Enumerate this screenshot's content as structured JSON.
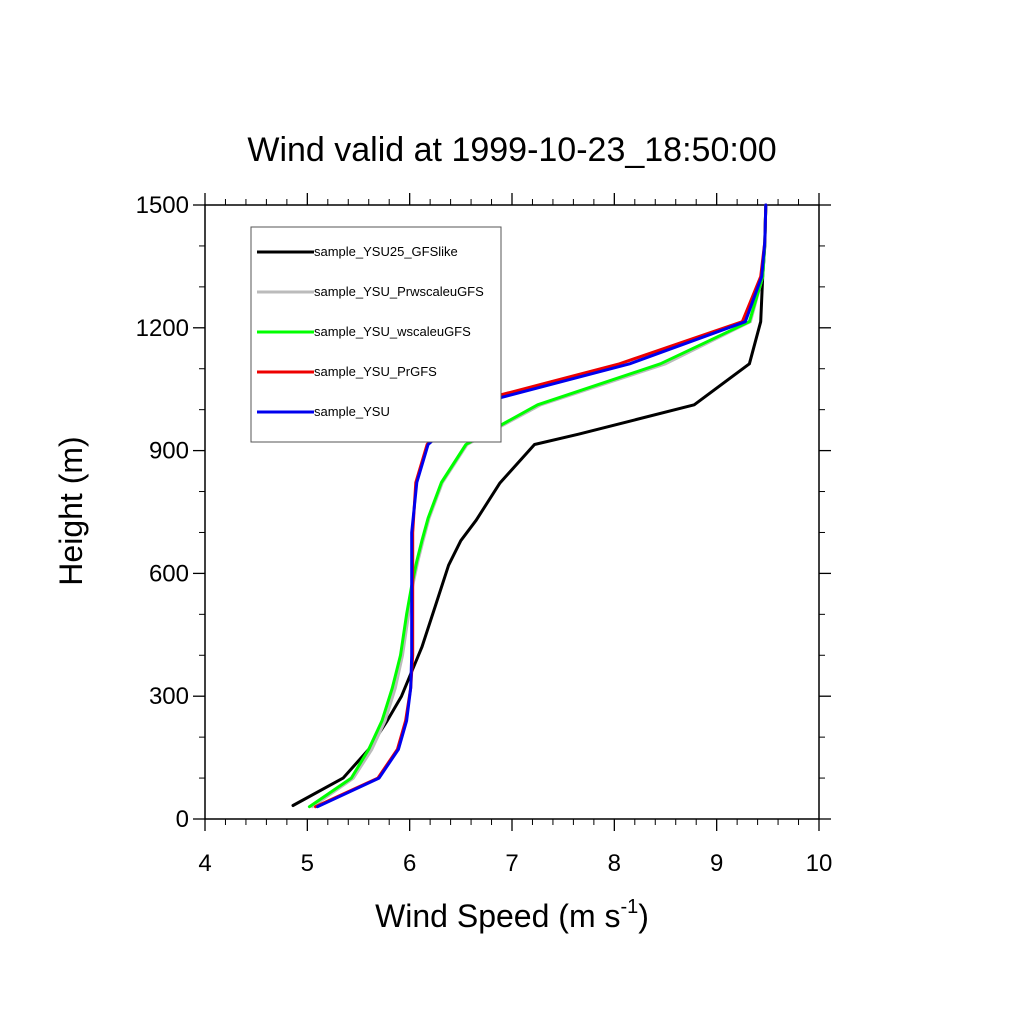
{
  "chart_data": {
    "type": "line",
    "title": "Wind valid at 1999-10-23_18:50:00",
    "xlabel": "Wind Speed (m s",
    "xlabel_exponent": "-1",
    "xlabel_close": ")",
    "ylabel": "Height (m)",
    "xlim": [
      4,
      10
    ],
    "ylim": [
      0,
      1500
    ],
    "x_ticks": [
      "4",
      "5",
      "6",
      "7",
      "8",
      "9",
      "10"
    ],
    "y_ticks": [
      "0",
      "300",
      "600",
      "900",
      "1200",
      "1500"
    ],
    "legend_position": "top-left",
    "grid": false,
    "series": [
      {
        "name": "sample_YSU25_GFSlike",
        "color": "#000000",
        "points": [
          [
            4.86,
            33
          ],
          [
            5.35,
            100
          ],
          [
            5.6,
            170
          ],
          [
            5.78,
            240
          ],
          [
            5.92,
            300
          ],
          [
            6.02,
            360
          ],
          [
            6.12,
            420
          ],
          [
            6.25,
            520
          ],
          [
            6.38,
            620
          ],
          [
            6.5,
            680
          ],
          [
            6.65,
            730
          ],
          [
            6.88,
            820
          ],
          [
            7.22,
            915
          ],
          [
            7.65,
            940
          ],
          [
            8.2,
            975
          ],
          [
            8.78,
            1012
          ],
          [
            9.32,
            1112
          ],
          [
            9.43,
            1215
          ],
          [
            9.45,
            1325
          ],
          [
            9.47,
            1400
          ],
          [
            9.48,
            1500
          ]
        ]
      },
      {
        "name": "sample_YSU_PrwscaleuGFS",
        "color": "#bbbbbb",
        "points": [
          [
            5.05,
            30
          ],
          [
            5.45,
            100
          ],
          [
            5.63,
            170
          ],
          [
            5.76,
            240
          ],
          [
            5.86,
            320
          ],
          [
            5.93,
            400
          ],
          [
            5.99,
            500
          ],
          [
            6.03,
            570
          ],
          [
            6.08,
            630
          ],
          [
            6.13,
            680
          ],
          [
            6.19,
            735
          ],
          [
            6.32,
            822
          ],
          [
            6.56,
            915
          ],
          [
            7.28,
            1012
          ],
          [
            8.5,
            1112
          ],
          [
            9.33,
            1215
          ],
          [
            9.45,
            1325
          ],
          [
            9.47,
            1410
          ],
          [
            9.48,
            1500
          ]
        ]
      },
      {
        "name": "sample_YSU_wscaleuGFS",
        "color": "#00ff00",
        "points": [
          [
            5.02,
            30
          ],
          [
            5.43,
            100
          ],
          [
            5.6,
            170
          ],
          [
            5.73,
            240
          ],
          [
            5.83,
            320
          ],
          [
            5.91,
            400
          ],
          [
            5.97,
            500
          ],
          [
            6.02,
            570
          ],
          [
            6.07,
            630
          ],
          [
            6.12,
            680
          ],
          [
            6.18,
            735
          ],
          [
            6.31,
            822
          ],
          [
            6.55,
            915
          ],
          [
            7.25,
            1012
          ],
          [
            8.45,
            1112
          ],
          [
            9.32,
            1215
          ],
          [
            9.45,
            1325
          ],
          [
            9.47,
            1410
          ],
          [
            9.48,
            1500
          ]
        ]
      },
      {
        "name": "sample_YSU_PrGFS",
        "color": "#ee0000",
        "points": [
          [
            5.08,
            30
          ],
          [
            5.69,
            100
          ],
          [
            5.88,
            170
          ],
          [
            5.96,
            240
          ],
          [
            6.01,
            320
          ],
          [
            6.03,
            400
          ],
          [
            6.03,
            500
          ],
          [
            6.03,
            600
          ],
          [
            6.03,
            700
          ],
          [
            6.06,
            822
          ],
          [
            6.17,
            915
          ],
          [
            6.52,
            1012
          ],
          [
            8.05,
            1112
          ],
          [
            9.25,
            1215
          ],
          [
            9.43,
            1325
          ],
          [
            9.47,
            1410
          ],
          [
            9.48,
            1500
          ]
        ]
      },
      {
        "name": "sample_YSU",
        "color": "#0000ee",
        "points": [
          [
            5.1,
            30
          ],
          [
            5.7,
            100
          ],
          [
            5.89,
            170
          ],
          [
            5.97,
            240
          ],
          [
            6.01,
            320
          ],
          [
            6.02,
            400
          ],
          [
            6.02,
            500
          ],
          [
            6.02,
            600
          ],
          [
            6.02,
            700
          ],
          [
            6.07,
            822
          ],
          [
            6.18,
            915
          ],
          [
            6.62,
            1012
          ],
          [
            8.15,
            1112
          ],
          [
            9.28,
            1215
          ],
          [
            9.44,
            1325
          ],
          [
            9.47,
            1410
          ],
          [
            9.48,
            1500
          ]
        ]
      }
    ]
  }
}
